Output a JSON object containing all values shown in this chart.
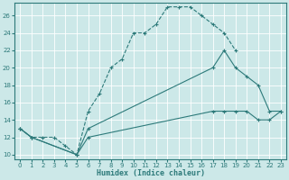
{
  "xlabel": "Humidex (Indice chaleur)",
  "bg_color": "#cce8e8",
  "grid_color": "#b8d8d8",
  "line_color": "#2d7a7a",
  "xlim": [
    -0.5,
    23.5
  ],
  "ylim": [
    9.5,
    27.5
  ],
  "xticks": [
    0,
    1,
    2,
    3,
    4,
    5,
    6,
    7,
    8,
    9,
    10,
    11,
    12,
    13,
    14,
    15,
    16,
    17,
    18,
    19,
    20,
    21,
    22,
    23
  ],
  "yticks": [
    10,
    12,
    14,
    16,
    18,
    20,
    22,
    24,
    26
  ],
  "line1_x": [
    0,
    1,
    2,
    3,
    4,
    5,
    6,
    7,
    8,
    9,
    10,
    11,
    12,
    13,
    14,
    15,
    16,
    17,
    18,
    19
  ],
  "line1_y": [
    13,
    12,
    12,
    12,
    11,
    10,
    15,
    17,
    20,
    21,
    24,
    24,
    25,
    27,
    27,
    27,
    26,
    25,
    24,
    22
  ],
  "line2_x": [
    0,
    1,
    5,
    6,
    17,
    18,
    19,
    20,
    21,
    22,
    23
  ],
  "line2_y": [
    13,
    12,
    10,
    13,
    20,
    22,
    20,
    19,
    18,
    15,
    15
  ],
  "line3_x": [
    0,
    1,
    5,
    6,
    17,
    18,
    19,
    20,
    21,
    22,
    23
  ],
  "line3_y": [
    13,
    12,
    10,
    12,
    15,
    15,
    15,
    15,
    14,
    14,
    15
  ]
}
